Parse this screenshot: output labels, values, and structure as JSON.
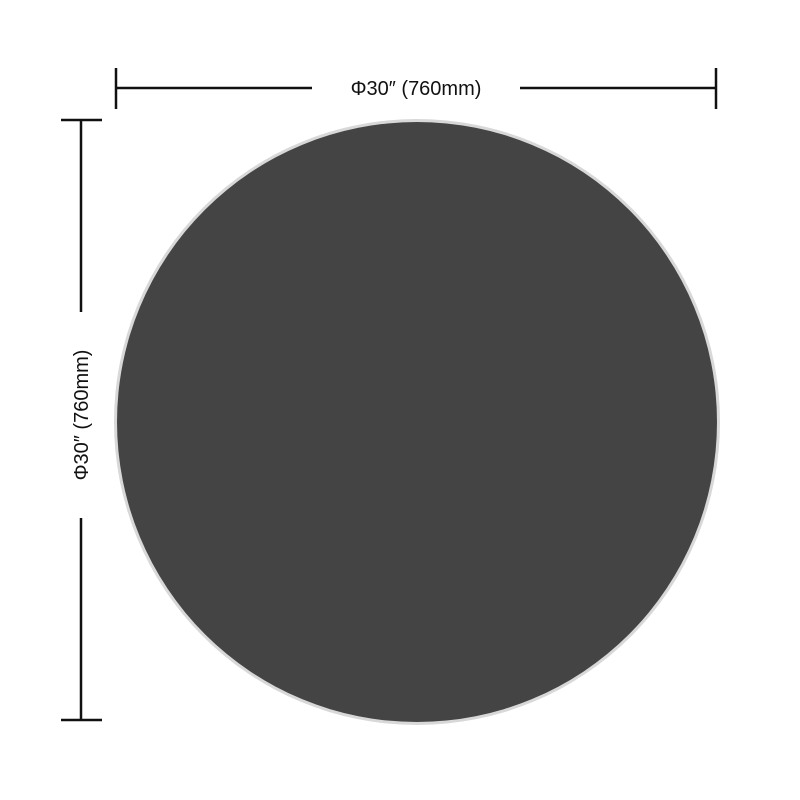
{
  "dimensions": {
    "width_label": "Φ30″ (760mm)",
    "height_label": "Φ30″ (760mm)"
  },
  "colors": {
    "tabletop": "#444444",
    "rim": "#d8d8d8",
    "dimension_line": "#111111"
  }
}
